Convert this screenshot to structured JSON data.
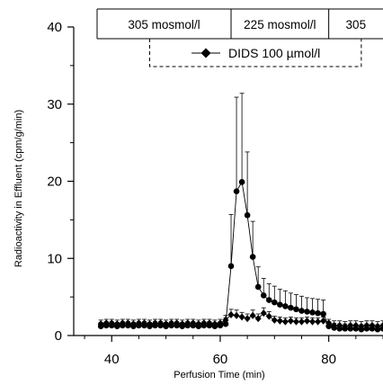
{
  "chart_data": {
    "type": "line",
    "xlabel": "Perfusion Time (min)",
    "ylabel": "Radioactivity in Effluent (cpm/g/min)",
    "xlim": [
      33,
      90
    ],
    "ylim": [
      0,
      40
    ],
    "x_ticks": [
      "40",
      "60",
      "80"
    ],
    "y_ticks": [
      "0",
      "10",
      "20",
      "30",
      "40"
    ],
    "grid": false,
    "osmolarity_bar": [
      {
        "label": "305 mosmol/l",
        "from": 33,
        "to": 62
      },
      {
        "label": "225 mosmol/l",
        "from": 62,
        "to": 80
      },
      {
        "label": "305",
        "from": 80,
        "to": 90
      }
    ],
    "legend": {
      "label": "DIDS 100 µmol/l",
      "from": 47,
      "to": 86,
      "position": "top"
    },
    "series": [
      {
        "name": "DIDS 100 µmol/l",
        "marker": "diamond",
        "x": [
          38,
          39,
          40,
          41,
          42,
          43,
          44,
          45,
          46,
          47,
          48,
          49,
          50,
          51,
          52,
          53,
          54,
          55,
          56,
          57,
          58,
          59,
          60,
          61,
          62,
          63,
          64,
          65,
          66,
          67,
          68,
          69,
          70,
          71,
          72,
          73,
          74,
          75,
          76,
          77,
          78,
          79,
          80,
          81,
          82,
          83,
          84,
          85,
          86,
          87,
          88,
          89,
          90
        ],
        "y": [
          1.5,
          1.6,
          1.6,
          1.5,
          1.6,
          1.6,
          1.5,
          1.6,
          1.6,
          1.5,
          1.6,
          1.6,
          1.5,
          1.6,
          1.6,
          1.5,
          1.6,
          1.6,
          1.5,
          1.6,
          1.6,
          1.5,
          1.6,
          2.0,
          2.7,
          2.6,
          2.4,
          2.2,
          2.6,
          2.2,
          2.9,
          2.5,
          2.0,
          1.9,
          1.8,
          1.9,
          1.8,
          1.8,
          1.9,
          1.8,
          1.8,
          1.9,
          1.6,
          1.3,
          1.3,
          1.2,
          1.3,
          1.3,
          1.2,
          1.3,
          1.3,
          1.2,
          1.3
        ],
        "err": [
          0.5,
          0.5,
          0.5,
          0.5,
          0.5,
          0.5,
          0.5,
          0.5,
          0.5,
          0.5,
          0.5,
          0.5,
          0.5,
          0.5,
          0.5,
          0.5,
          0.5,
          0.5,
          0.5,
          0.5,
          0.5,
          0.5,
          0.5,
          0.6,
          0.7,
          0.7,
          0.6,
          0.6,
          0.7,
          0.6,
          0.7,
          0.6,
          0.5,
          0.5,
          0.5,
          0.5,
          0.5,
          0.5,
          0.5,
          0.5,
          0.5,
          0.5,
          0.5,
          0.6,
          0.6,
          0.6,
          0.6,
          0.6,
          0.6,
          0.6,
          0.6,
          0.6,
          0.6
        ]
      },
      {
        "name": "",
        "marker": "circle",
        "x": [
          38,
          39,
          40,
          41,
          42,
          43,
          44,
          45,
          46,
          47,
          48,
          49,
          50,
          51,
          52,
          53,
          54,
          55,
          56,
          57,
          58,
          59,
          60,
          61,
          62,
          63,
          64,
          65,
          66,
          67,
          68,
          69,
          70,
          71,
          72,
          73,
          74,
          75,
          76,
          77,
          78,
          79,
          80,
          81,
          82,
          83,
          84,
          85,
          86,
          87,
          88,
          89,
          90
        ],
        "y": [
          1.2,
          1.3,
          1.3,
          1.2,
          1.3,
          1.3,
          1.2,
          1.3,
          1.3,
          1.2,
          1.3,
          1.3,
          1.2,
          1.3,
          1.3,
          1.2,
          1.3,
          1.3,
          1.2,
          1.3,
          1.3,
          1.2,
          1.3,
          1.5,
          9.0,
          18.7,
          19.9,
          15.6,
          10.2,
          6.3,
          5.2,
          4.6,
          4.3,
          4.0,
          3.8,
          3.6,
          3.4,
          3.2,
          3.1,
          3.0,
          2.9,
          2.8,
          1.2,
          1.0,
          0.9,
          0.9,
          0.9,
          0.9,
          0.8,
          0.9,
          0.9,
          0.8,
          0.9
        ],
        "err": [
          0.5,
          0.5,
          0.5,
          0.5,
          0.5,
          0.5,
          0.5,
          0.5,
          0.5,
          0.5,
          0.5,
          0.5,
          0.5,
          0.5,
          0.5,
          0.5,
          0.5,
          0.5,
          0.5,
          0.5,
          0.5,
          0.5,
          0.5,
          0.8,
          6.7,
          12.2,
          11.5,
          8.2,
          4.6,
          2.6,
          2.2,
          2.1,
          2.1,
          2.0,
          2.0,
          1.9,
          1.9,
          1.9,
          1.8,
          1.8,
          1.8,
          1.8,
          0.6,
          0.6,
          0.6,
          0.6,
          0.6,
          0.6,
          0.6,
          0.6,
          0.6,
          0.6,
          0.6
        ]
      }
    ]
  }
}
